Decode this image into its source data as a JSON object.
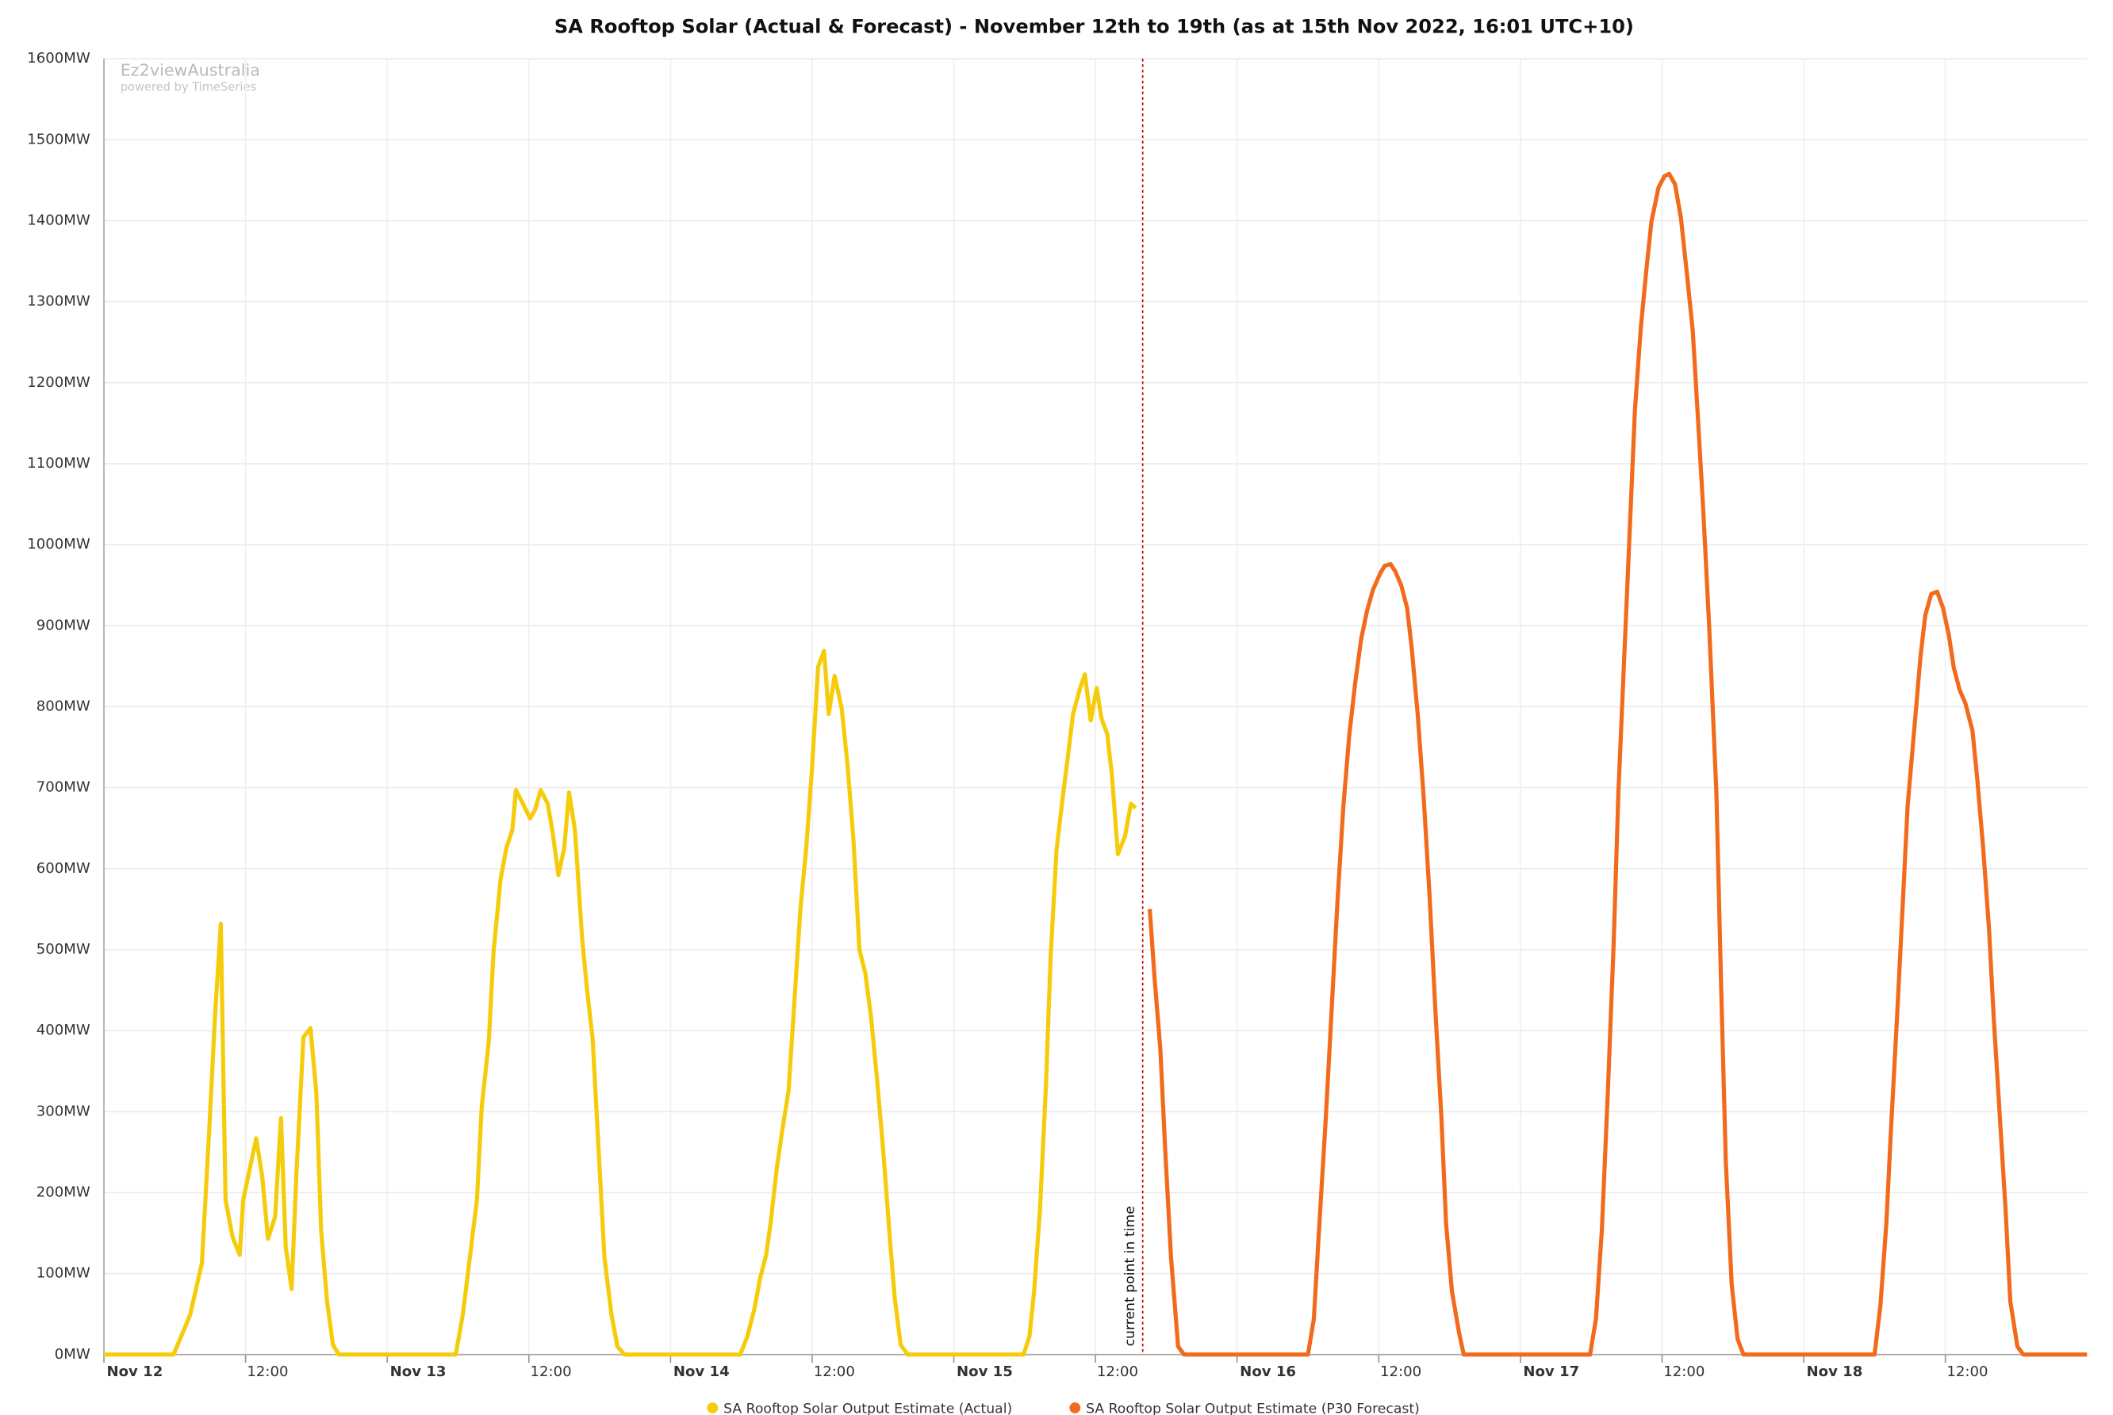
{
  "chart_data": {
    "type": "line",
    "title": "SA Rooftop Solar (Actual & Forecast) - November 12th to 19th (as at 15th Nov 2022, 16:01 UTC+10)",
    "watermark": "Ez2viewAustralia",
    "watermark_subtitle": "powered by TimeSeries",
    "xlim": [
      0,
      168
    ],
    "ylim": [
      0,
      1600
    ],
    "grid": true,
    "legend": "bottom",
    "xticks": [
      {
        "value": 0,
        "label": "Nov 12"
      },
      {
        "value": 12,
        "label": "12:00"
      },
      {
        "value": 24,
        "label": "Nov 13"
      },
      {
        "value": 36,
        "label": "12:00"
      },
      {
        "value": 48,
        "label": "Nov 14"
      },
      {
        "value": 60,
        "label": "12:00"
      },
      {
        "value": 72,
        "label": "Nov 15"
      },
      {
        "value": 84,
        "label": "12:00"
      },
      {
        "value": 96,
        "label": "Nov 16"
      },
      {
        "value": 108,
        "label": "12:00"
      },
      {
        "value": 120,
        "label": "Nov 17"
      },
      {
        "value": 132,
        "label": "12:00"
      },
      {
        "value": 144,
        "label": "Nov 18"
      },
      {
        "value": 156,
        "label": "12:00"
      }
    ],
    "yticks": [
      {
        "value": 0,
        "label": "0MW"
      },
      {
        "value": 100,
        "label": "100MW"
      },
      {
        "value": 200,
        "label": "200MW"
      },
      {
        "value": 300,
        "label": "300MW"
      },
      {
        "value": 400,
        "label": "400MW"
      },
      {
        "value": 500,
        "label": "500MW"
      },
      {
        "value": 600,
        "label": "600MW"
      },
      {
        "value": 700,
        "label": "700MW"
      },
      {
        "value": 800,
        "label": "800MW"
      },
      {
        "value": 900,
        "label": "900MW"
      },
      {
        "value": 1000,
        "label": "1000MW"
      },
      {
        "value": 1100,
        "label": "1100MW"
      },
      {
        "value": 1200,
        "label": "1200MW"
      },
      {
        "value": 1300,
        "label": "1300MW"
      },
      {
        "value": 1400,
        "label": "1400MW"
      },
      {
        "value": 1500,
        "label": "1500MW"
      },
      {
        "value": 1600,
        "label": "1600MW"
      }
    ],
    "annotations": [
      {
        "text": "current point in time",
        "x": 88.0,
        "color": "#cc0000"
      }
    ],
    "series": [
      {
        "name": "SA Rooftop Solar Output Estimate (Actual)",
        "color": "#f5cc0a",
        "x": [
          0,
          5.9,
          7.3,
          8.3,
          8.9,
          9.4,
          9.9,
          10.3,
          10.9,
          11.5,
          11.8,
          12.9,
          13.4,
          13.9,
          14.5,
          15.0,
          15.4,
          15.9,
          16.3,
          16.9,
          17.5,
          18.0,
          18.4,
          18.9,
          19.4,
          19.9,
          29.8,
          30.4,
          31.0,
          31.6,
          32.0,
          32.6,
          33.0,
          33.6,
          34.1,
          34.6,
          34.9,
          35.5,
          36.1,
          36.5,
          37.0,
          37.6,
          38.0,
          38.5,
          39.0,
          39.4,
          39.9,
          40.5,
          40.9,
          41.4,
          41.9,
          42.4,
          43.0,
          43.5,
          44.1,
          53.9,
          54.5,
          55.1,
          55.6,
          56.1,
          56.5,
          57.0,
          57.5,
          58.0,
          58.4,
          59.0,
          59.5,
          60.0,
          60.5,
          61.0,
          61.4,
          61.9,
          62.5,
          63.0,
          63.5,
          64.0,
          64.5,
          65.0,
          65.5,
          66.0,
          66.6,
          67.0,
          67.5,
          68.1,
          77.9,
          78.4,
          78.8,
          79.3,
          79.8,
          80.2,
          80.7,
          81.2,
          81.6,
          82.1,
          82.7,
          83.1,
          83.6,
          84.1,
          84.5,
          85.0,
          85.4,
          85.9,
          86.5,
          87.0,
          87.4
        ],
        "values": [
          0,
          0,
          49,
          113,
          272,
          415,
          532,
          191,
          145,
          123,
          191,
          267,
          221,
          143,
          170,
          292,
          133,
          81,
          221,
          392,
          403,
          322,
          153,
          66,
          12,
          0,
          0,
          49,
          120,
          191,
          305,
          386,
          496,
          587,
          626,
          648,
          697,
          680,
          662,
          672,
          697,
          680,
          646,
          592,
          626,
          694,
          648,
          516,
          454,
          390,
          255,
          120,
          49,
          10,
          0,
          0,
          22,
          56,
          95,
          123,
          165,
          230,
          280,
          326,
          415,
          550,
          626,
          727,
          849,
          869,
          791,
          838,
          798,
          727,
          635,
          500,
          471,
          415,
          339,
          255,
          140,
          69,
          12,
          0,
          0,
          22,
          78,
          179,
          331,
          491,
          623,
          685,
          731,
          791,
          823,
          840,
          783,
          823,
          786,
          766,
          714,
          618,
          640,
          680,
          675
        ]
      },
      {
        "name": "SA Rooftop Solar Output Estimate (P30 Forecast)",
        "color": "#f26a1b",
        "x": [
          88.6,
          89.0,
          89.5,
          89.9,
          90.4,
          91.0,
          91.5,
          102.0,
          102.5,
          102.9,
          103.5,
          104.0,
          104.5,
          105.0,
          105.5,
          106.0,
          106.5,
          107.0,
          107.5,
          108.1,
          108.5,
          109.0,
          109.4,
          109.9,
          110.4,
          110.8,
          111.3,
          111.8,
          112.3,
          112.8,
          113.3,
          113.7,
          114.2,
          114.8,
          115.2,
          125.9,
          126.4,
          126.9,
          127.4,
          127.9,
          128.3,
          128.8,
          129.3,
          129.7,
          130.2,
          130.7,
          131.1,
          131.7,
          132.2,
          132.6,
          133.1,
          133.6,
          134.1,
          134.6,
          135.0,
          135.5,
          136.0,
          136.6,
          137.0,
          137.4,
          137.9,
          138.4,
          138.9,
          150.0,
          150.5,
          151.0,
          151.4,
          151.9,
          152.4,
          152.8,
          153.4,
          153.9,
          154.3,
          154.8,
          155.3,
          155.8,
          156.3,
          156.7,
          157.2,
          157.7,
          158.3,
          158.7,
          159.2,
          159.7,
          160.1,
          160.6,
          161.1,
          161.5,
          162.1,
          162.6,
          168
        ],
        "values": [
          550,
          466,
          376,
          255,
          120,
          10,
          0,
          0,
          44,
          145,
          289,
          424,
          559,
          677,
          765,
          829,
          883,
          918,
          944,
          964,
          974,
          976,
          967,
          950,
          922,
          871,
          790,
          689,
          567,
          424,
          294,
          162,
          78,
          27,
          0,
          0,
          44,
          154,
          322,
          508,
          694,
          863,
          1031,
          1166,
          1268,
          1344,
          1399,
          1441,
          1455,
          1458,
          1445,
          1403,
          1335,
          1264,
          1166,
          1040,
          896,
          694,
          457,
          238,
          86,
          19,
          0,
          0,
          61,
          162,
          280,
          415,
          559,
          677,
          778,
          863,
          913,
          939,
          942,
          922,
          888,
          849,
          821,
          804,
          770,
          711,
          626,
          525,
          415,
          297,
          179,
          66,
          10,
          0,
          0
        ]
      }
    ]
  }
}
